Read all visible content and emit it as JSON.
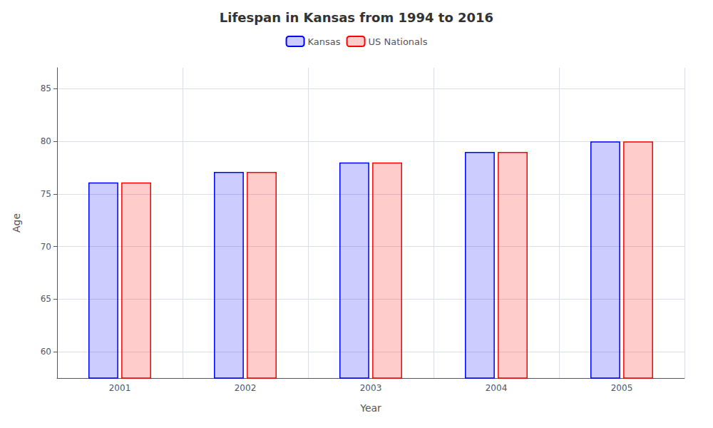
{
  "chart_data": {
    "type": "bar",
    "title": "Lifespan in Kansas from 1994 to 2016",
    "x_label": "Year",
    "y_label": "Age",
    "categories": [
      "2001",
      "2002",
      "2003",
      "2004",
      "2005"
    ],
    "series": [
      {
        "name": "Kansas",
        "color": "#0000ff",
        "values": [
          76.1,
          77.1,
          78.0,
          79.0,
          80.0
        ]
      },
      {
        "name": "US Nationals",
        "color": "#ff0000",
        "values": [
          76.1,
          77.1,
          78.0,
          79.0,
          80.0
        ]
      }
    ],
    "ylim": [
      57.5,
      87
    ],
    "yticks": [
      60,
      65,
      70,
      75,
      80,
      85
    ],
    "grid": true,
    "legend": "top"
  }
}
